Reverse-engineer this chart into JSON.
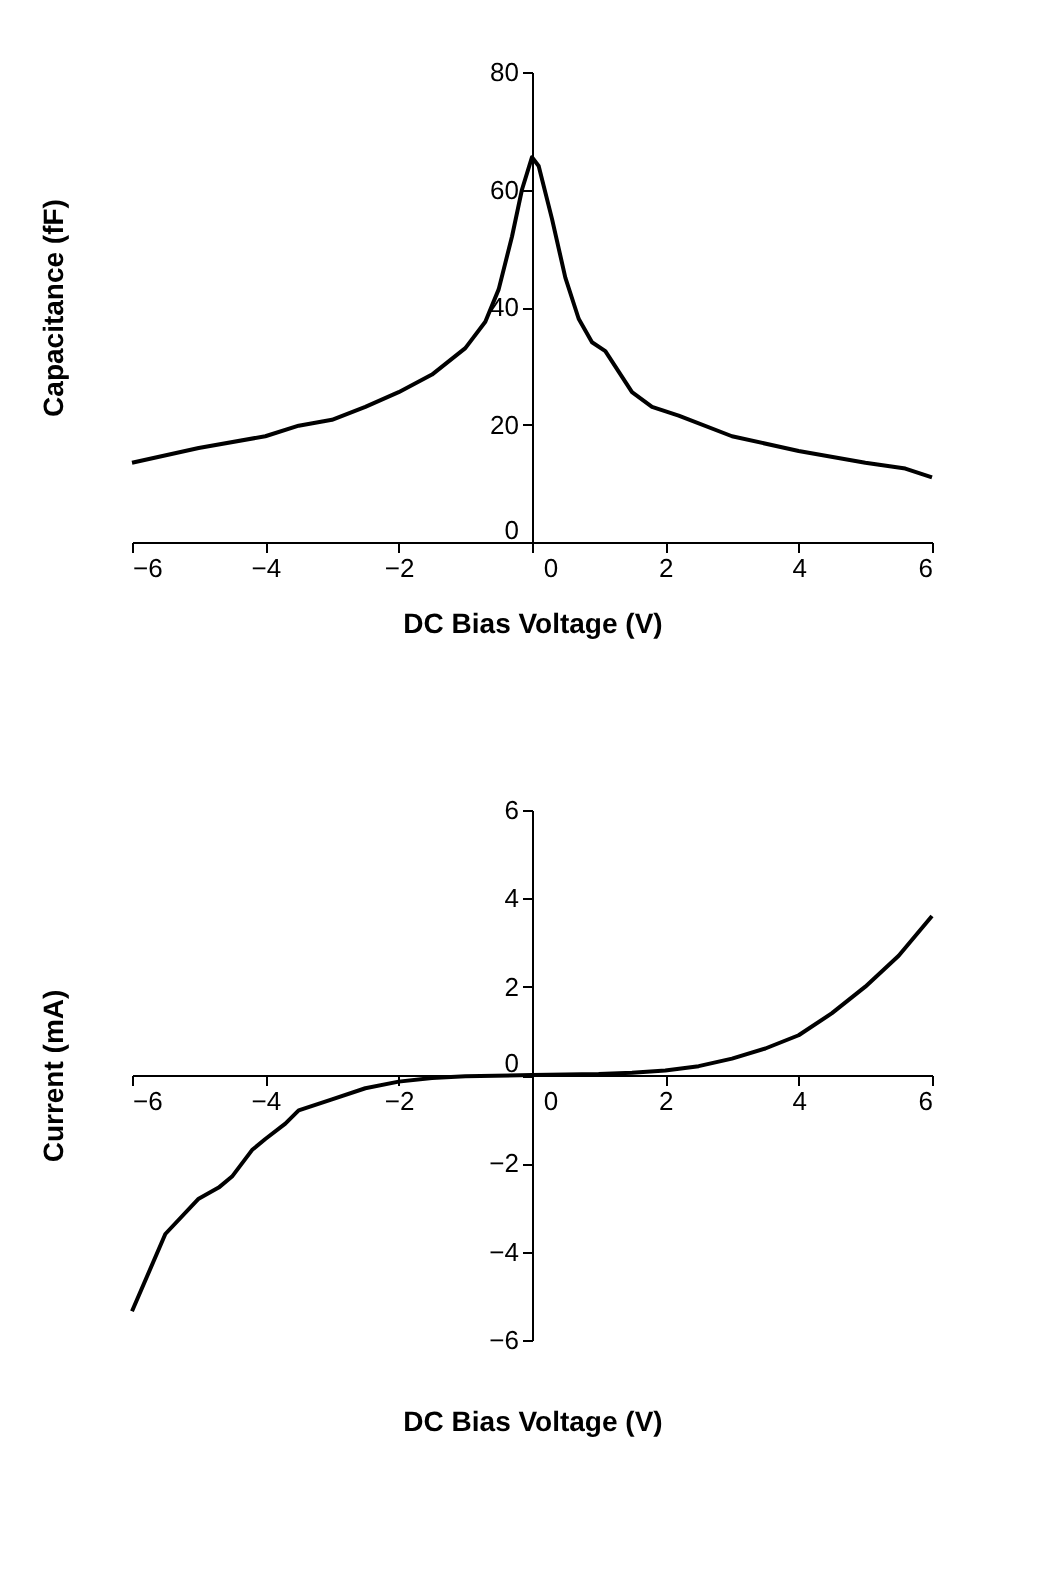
{
  "chart_data": [
    {
      "type": "line",
      "xlabel": "DC Bias Voltage (V)",
      "ylabel": "Capacitance (fF)",
      "xlim": [
        -6,
        6
      ],
      "xticks": [
        -6,
        -4,
        -2,
        0,
        2,
        4,
        6
      ],
      "ylim": [
        0,
        80
      ],
      "yticks": [
        0,
        20,
        40,
        60,
        80
      ],
      "grid": false,
      "marker": "none",
      "line_style": "solid",
      "series": [
        {
          "color": "#000000",
          "x": [
            -6,
            -5,
            -4,
            -3.5,
            -3,
            -2.5,
            -2,
            -1.5,
            -1,
            -0.7,
            -0.5,
            -0.3,
            -0.15,
            0,
            0.1,
            0.3,
            0.5,
            0.7,
            0.9,
            1.1,
            1.3,
            1.5,
            1.8,
            2.2,
            3,
            4,
            5,
            5.6,
            6
          ],
          "values": [
            13.5,
            16,
            18,
            19.8,
            20.8,
            23,
            25.5,
            28.5,
            33,
            37.5,
            43,
            52,
            60,
            65.5,
            64,
            55,
            45,
            38,
            34,
            32.5,
            29,
            25.5,
            23,
            21.5,
            18,
            15.5,
            13.5,
            12.5,
            11
          ]
        }
      ]
    },
    {
      "type": "line",
      "xlabel": "DC Bias Voltage (V)",
      "ylabel": "Current (mA)",
      "xlim": [
        -6,
        6
      ],
      "xticks": [
        -6,
        -4,
        -2,
        0,
        2,
        4,
        6
      ],
      "ylim": [
        -6,
        6
      ],
      "yticks": [
        -6,
        -4,
        -2,
        0,
        2,
        4,
        6
      ],
      "grid": false,
      "marker": "none",
      "line_style": "solid",
      "series": [
        {
          "color": "#000000",
          "x": [
            -6,
            -5.5,
            -5,
            -4.7,
            -4.5,
            -4.2,
            -4,
            -3.7,
            -3.5,
            -3,
            -2.5,
            -2,
            -1.5,
            -1,
            0,
            1,
            1.5,
            2,
            2.5,
            3,
            3.5,
            4,
            4.5,
            5,
            5.5,
            6
          ],
          "values": [
            -5.35,
            -3.6,
            -2.8,
            -2.55,
            -2.3,
            -1.7,
            -1.45,
            -1.1,
            -0.8,
            -0.55,
            -0.3,
            -0.15,
            -0.07,
            -0.03,
            0,
            0.02,
            0.05,
            0.1,
            0.2,
            0.37,
            0.6,
            0.9,
            1.4,
            2.0,
            2.7,
            3.6
          ]
        }
      ]
    }
  ]
}
